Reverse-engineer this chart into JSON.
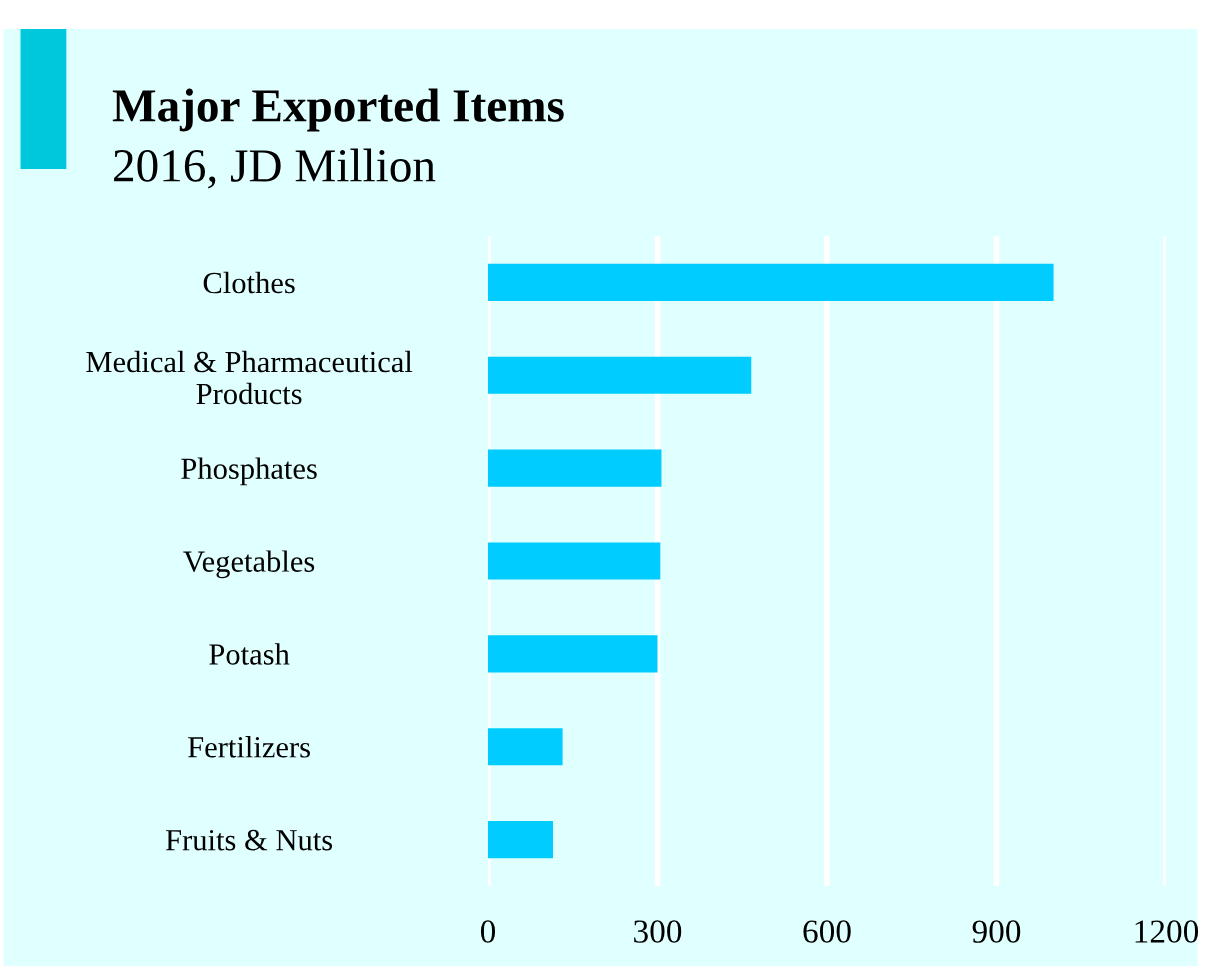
{
  "chart_data": {
    "type": "bar",
    "orientation": "horizontal",
    "title": "Major Exported Items",
    "subtitle": "2016, JD Million",
    "categories": [
      "Clothes",
      "Medical & Pharmaceutical\nProducts",
      "Phosphates",
      "Vegetables",
      "Potash",
      "Fertilizers",
      "Fruits & Nuts"
    ],
    "values": [
      1001,
      466,
      307,
      305,
      300,
      132,
      115
    ],
    "color": "#00ccff",
    "xlim": [
      0,
      1200
    ],
    "xticks": [
      0,
      300,
      600,
      900,
      1200
    ],
    "grid": "x",
    "legend": false
  }
}
